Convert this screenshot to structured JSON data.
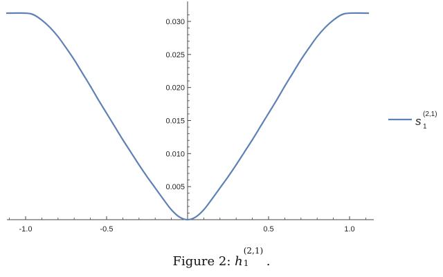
{
  "chart_data": {
    "type": "line",
    "xlim": [
      -1.12,
      1.12
    ],
    "ylim": [
      0,
      0.0315
    ],
    "xticks": [
      -1.0,
      -0.5,
      0.5,
      1.0
    ],
    "xtick_labels": [
      "-1.0",
      "-0.5",
      "0.5",
      "1.0"
    ],
    "yticks": [
      0.005,
      0.01,
      0.015,
      0.02,
      0.025,
      0.03
    ],
    "ytick_labels": [
      "0.005",
      "0.010",
      "0.015",
      "0.020",
      "0.025",
      "0.030"
    ],
    "grid": false,
    "legend_position": "right",
    "series": [
      {
        "name_base": "s",
        "name_sup": "(2,1)",
        "name_sub": "1",
        "color": "#5E81B5",
        "x": [
          -1.12,
          -1.0,
          -0.95,
          -0.9,
          -0.85,
          -0.8,
          -0.75,
          -0.7,
          -0.65,
          -0.6,
          -0.55,
          -0.5,
          -0.45,
          -0.4,
          -0.35,
          -0.3,
          -0.25,
          -0.2,
          -0.15,
          -0.1,
          -0.05,
          0.0,
          0.05,
          0.1,
          0.15,
          0.2,
          0.25,
          0.3,
          0.35,
          0.4,
          0.45,
          0.5,
          0.55,
          0.6,
          0.65,
          0.7,
          0.75,
          0.8,
          0.85,
          0.9,
          0.95,
          1.0,
          1.12
        ],
        "y": [
          0.03125,
          0.03125,
          0.031,
          0.0302,
          0.0291,
          0.0277,
          0.026,
          0.0242,
          0.0222,
          0.0202,
          0.0181,
          0.0161,
          0.0141,
          0.0121,
          0.0102,
          0.0083,
          0.0065,
          0.0048,
          0.0031,
          0.0015,
          0.0004,
          0.0,
          0.0004,
          0.0015,
          0.0031,
          0.0048,
          0.0065,
          0.0083,
          0.0102,
          0.0121,
          0.0141,
          0.0161,
          0.0181,
          0.0202,
          0.0222,
          0.0242,
          0.026,
          0.0277,
          0.0291,
          0.0302,
          0.031,
          0.03125,
          0.03125
        ]
      }
    ]
  },
  "caption": {
    "prefix": "Figure 2: ",
    "base": "h",
    "sup": "(2,1)",
    "sub": "1",
    "suffix": "."
  }
}
